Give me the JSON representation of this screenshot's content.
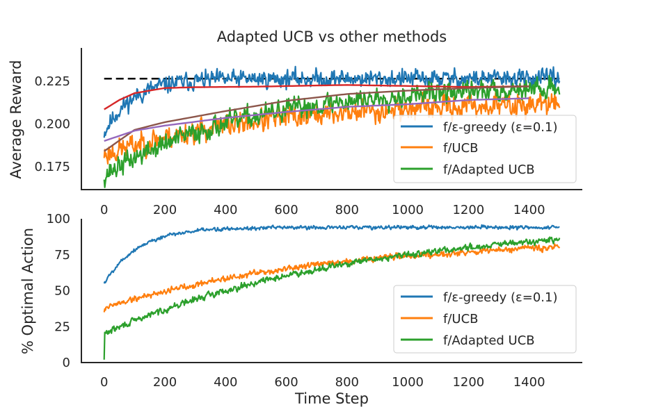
{
  "chart_data": [
    {
      "type": "line",
      "title": "Adapted UCB vs other methods",
      "ylabel": "Average Reward",
      "xlabel": "",
      "xlim": [
        -75,
        1575
      ],
      "ylim": [
        0.1615,
        0.2445
      ],
      "xticks": [
        0,
        200,
        400,
        600,
        800,
        1000,
        1200,
        1400
      ],
      "xtick_labels": [
        "0",
        "200",
        "400",
        "600",
        "800",
        "1000",
        "1200",
        "1400"
      ],
      "yticks": [
        0.175,
        0.2,
        0.225
      ],
      "ytick_labels": [
        "0.175",
        "0.200",
        "0.225"
      ],
      "grid": false,
      "legend_position": "lower-right",
      "reference_line": {
        "y": 0.2265,
        "x_range": [
          0,
          1500
        ],
        "style": "dashed",
        "color": "#000000"
      },
      "series": [
        {
          "name": "f/ε-greedy (ε=0.1)",
          "color": "#1f77b4",
          "kind": "noisy",
          "start": 0.195,
          "end": 0.2265,
          "rate": 95,
          "noise": 0.0042,
          "seed": 11,
          "in_legend": true
        },
        {
          "name": "f/UCB",
          "color": "#ff7f0e",
          "kind": "noisy",
          "start": 0.182,
          "end": 0.2135,
          "rate": 520,
          "noise": 0.0055,
          "seed": 23,
          "in_legend": true
        },
        {
          "name": "f/Adapted UCB",
          "color": "#2ca02c",
          "kind": "noisy",
          "start": 0.17,
          "end": 0.2235,
          "rate": 480,
          "noise": 0.005,
          "seed": 37,
          "in_legend": true
        },
        {
          "color": "#d62728",
          "kind": "smooth",
          "points": [
            [
              0,
              0.2085
            ],
            [
              50,
              0.214
            ],
            [
              100,
              0.218
            ],
            [
              200,
              0.221
            ],
            [
              300,
              0.2215
            ],
            [
              500,
              0.2218
            ],
            [
              700,
              0.2225
            ],
            [
              800,
              0.2228
            ],
            [
              1000,
              0.2222
            ],
            [
              1200,
              0.2216
            ],
            [
              1400,
              0.222
            ]
          ],
          "in_legend": false
        },
        {
          "color": "#8c564b",
          "kind": "smooth",
          "points": [
            [
              0,
              0.184
            ],
            [
              100,
              0.1965
            ],
            [
              200,
              0.201
            ],
            [
              400,
              0.2075
            ],
            [
              600,
              0.2135
            ],
            [
              800,
              0.2175
            ],
            [
              1000,
              0.2195
            ],
            [
              1200,
              0.221
            ],
            [
              1400,
              0.222
            ]
          ],
          "in_legend": false
        },
        {
          "color": "#9467bd",
          "kind": "smooth",
          "points": [
            [
              0,
              0.19
            ],
            [
              100,
              0.196
            ],
            [
              200,
              0.199
            ],
            [
              400,
              0.2035
            ],
            [
              600,
              0.207
            ],
            [
              800,
              0.21
            ],
            [
              1000,
              0.2115
            ],
            [
              1200,
              0.214
            ],
            [
              1400,
              0.215
            ]
          ],
          "in_legend": false
        }
      ]
    },
    {
      "type": "line",
      "title": "",
      "ylabel": "% Optimal Action",
      "xlabel": "Time Step",
      "xlim": [
        -75,
        1575
      ],
      "ylim": [
        0,
        100
      ],
      "xticks": [
        0,
        200,
        400,
        600,
        800,
        1000,
        1200,
        1400
      ],
      "xtick_labels": [
        "0",
        "200",
        "400",
        "600",
        "800",
        "1000",
        "1200",
        "1400"
      ],
      "yticks": [
        0,
        25,
        50,
        75,
        100
      ],
      "ytick_labels": [
        "0",
        "25",
        "50",
        "75",
        "100"
      ],
      "grid": false,
      "legend_position": "lower-right",
      "series": [
        {
          "name": "f/ε-greedy (ε=0.1)",
          "color": "#1f77b4",
          "kind": "noisy",
          "start": 55,
          "end": 94,
          "rate": 110,
          "noise": 1.1,
          "seed": 5,
          "first": 55,
          "in_legend": true
        },
        {
          "name": "f/UCB",
          "color": "#ff7f0e",
          "kind": "noisy",
          "start": 38,
          "end": 86,
          "rate": 720,
          "noise": 1.8,
          "seed": 19,
          "first": 35,
          "in_legend": true
        },
        {
          "name": "f/Adapted UCB",
          "color": "#2ca02c",
          "kind": "noisy",
          "start": 20,
          "end": 98,
          "rate": 820,
          "noise": 1.8,
          "seed": 29,
          "first": 2,
          "in_legend": true
        }
      ]
    }
  ]
}
